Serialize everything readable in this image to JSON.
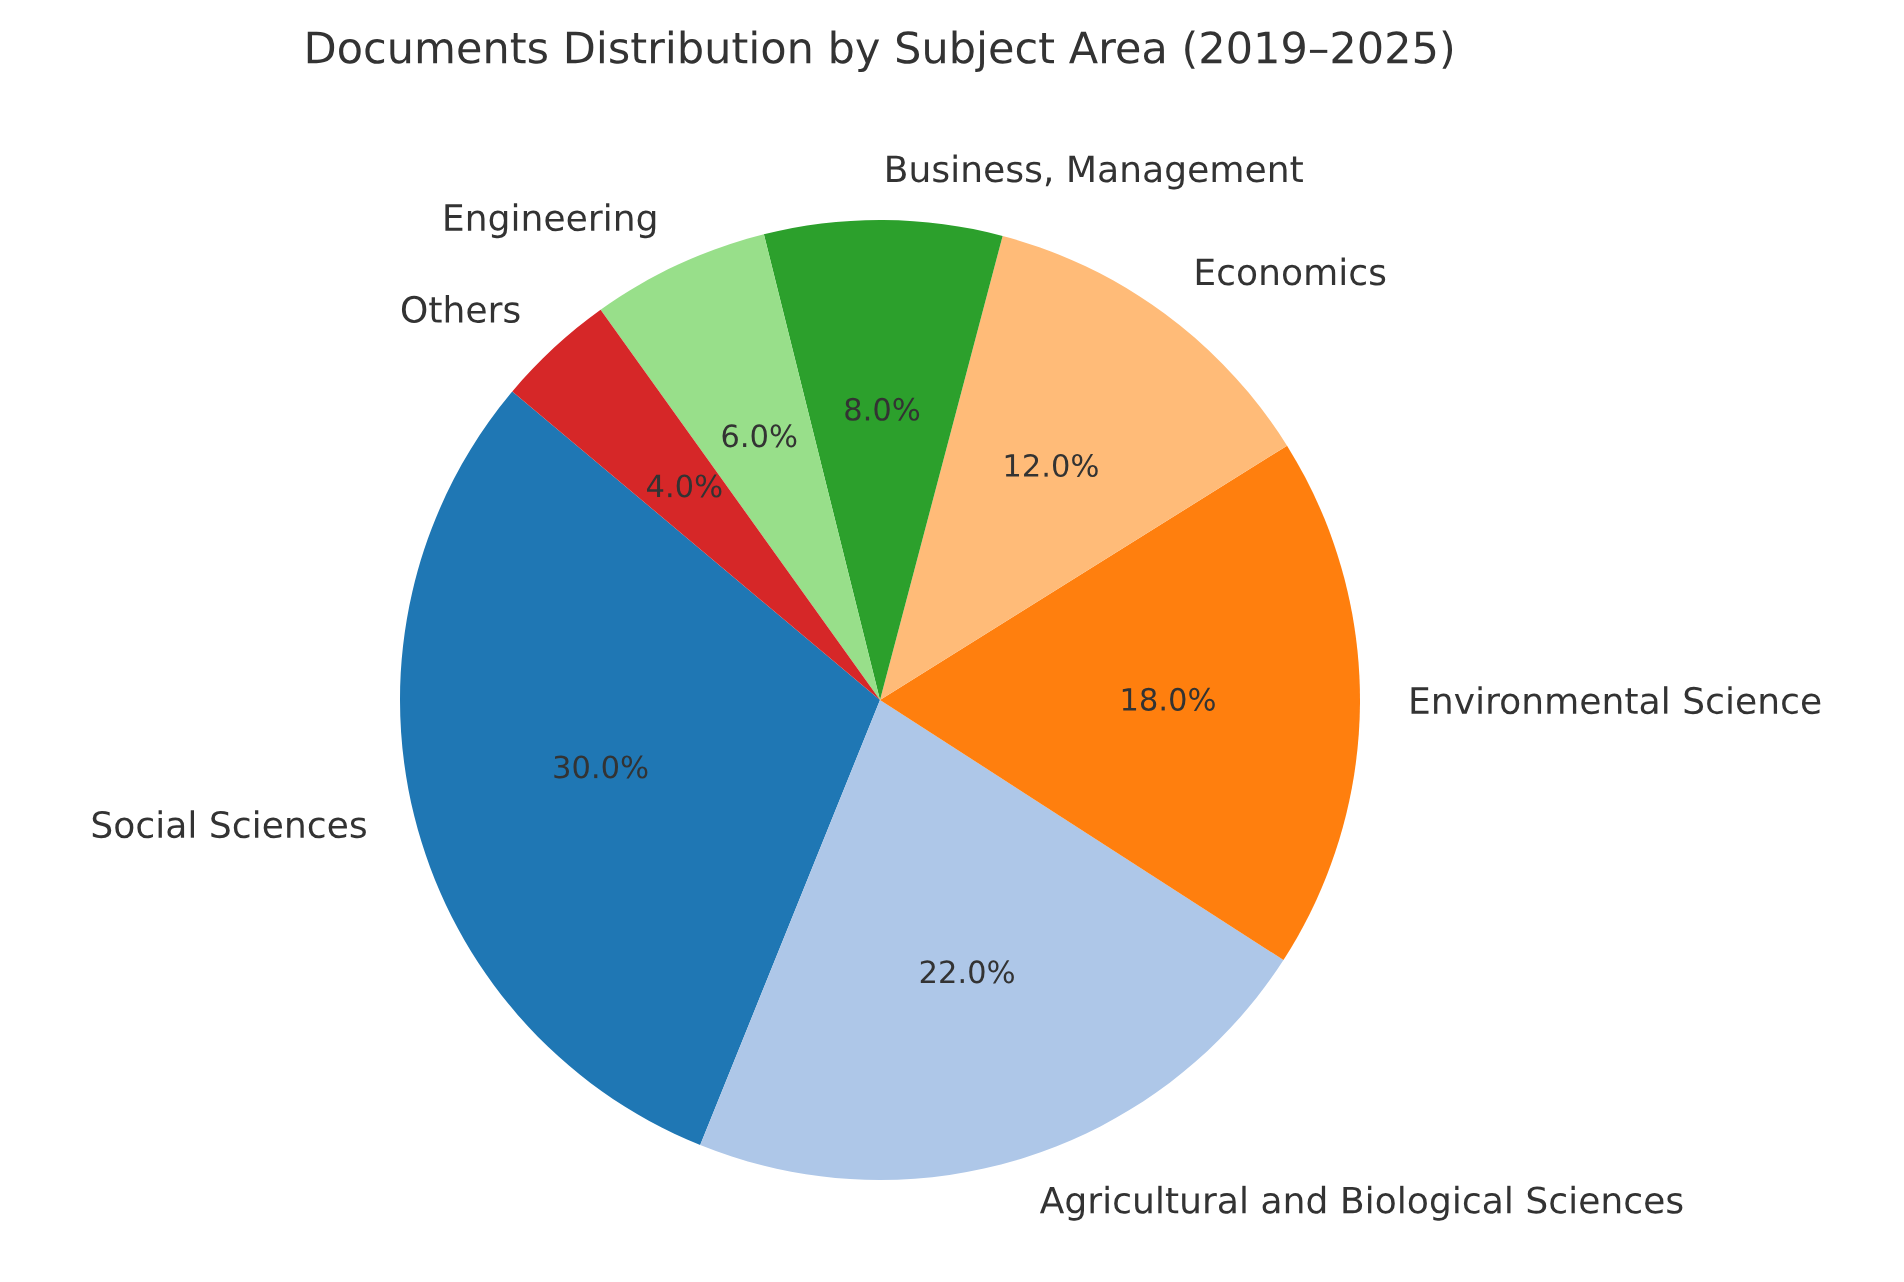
{
  "chart_data": {
    "type": "pie",
    "title": "Documents Distribution by Subject Area (2019–2025)",
    "categories": [
      "Social Sciences",
      "Agricultural and Biological Sciences",
      "Environmental Science",
      "Economics",
      "Business, Management",
      "Engineering",
      "Others"
    ],
    "values": [
      30,
      22,
      18,
      12,
      8,
      6,
      4
    ],
    "colors": [
      "#1f77b4",
      "#aec7e8",
      "#ff7f0e",
      "#ffbb78",
      "#2ca02c",
      "#98df8a",
      "#d62728"
    ],
    "value_labels": [
      "30.0%",
      "22.0%",
      "18.0%",
      "12.0%",
      "8.0%",
      "6.0%",
      "4.0%"
    ],
    "legend": false
  }
}
